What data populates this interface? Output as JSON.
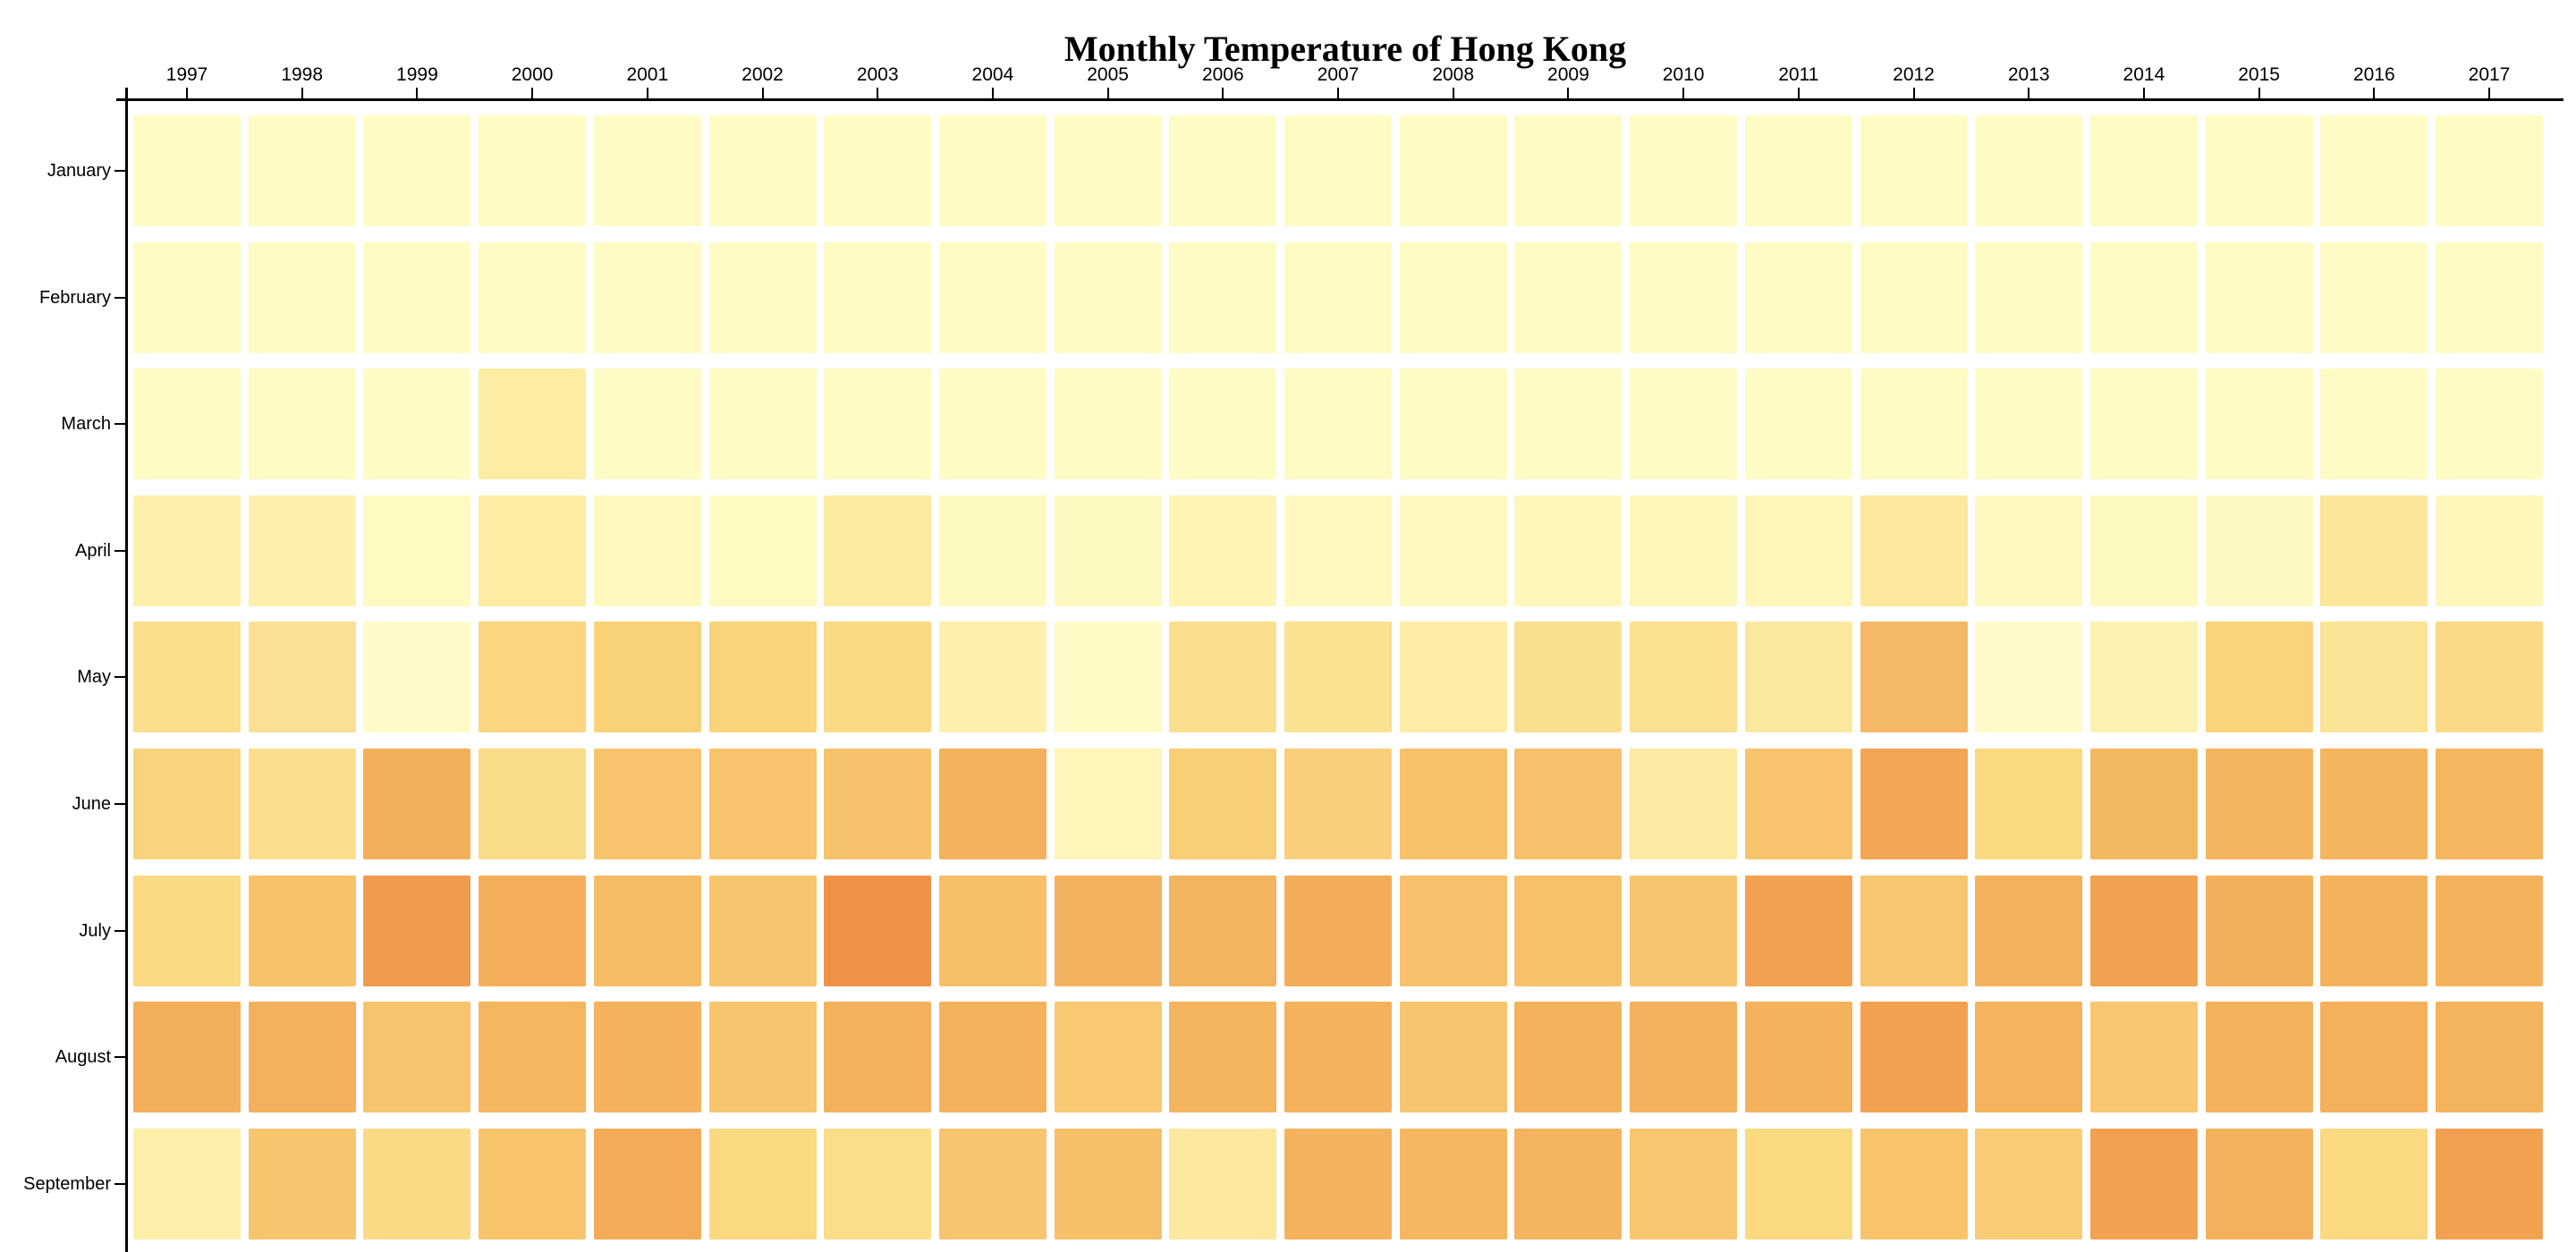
{
  "title": "Monthly Temperature of Hong Kong",
  "colors": {
    "background": "#ffffff",
    "axis_line": "#000000",
    "label_text": "#000000",
    "scale_min_observed": "#fefbc9",
    "scale_max_observed": "#ef9248"
  },
  "chart_data": {
    "type": "heatmap",
    "title": "Monthly Temperature of Hong Kong",
    "legend": "none",
    "x_axis": {
      "position": "top",
      "tick_labels": [
        "1997",
        "1998",
        "1999",
        "2000",
        "2001",
        "2002",
        "2003",
        "2004",
        "2005",
        "2006",
        "2007",
        "2008",
        "2009",
        "2010",
        "2011",
        "2012",
        "2013",
        "2014",
        "2015",
        "2016",
        "2017"
      ]
    },
    "y_axis": {
      "position": "left",
      "tick_labels": [
        "January",
        "February",
        "March",
        "April",
        "May",
        "June",
        "July",
        "August",
        "September"
      ]
    },
    "value_encoding": "temperature encoded as cell color from pale yellow (cool) to deep orange (hot); no colorbar shown",
    "rows": [
      {
        "label": "January",
        "colors": [
          "#fefbc5",
          "#fefbc5",
          "#fefbc5",
          "#fefbc5",
          "#fefbc5",
          "#fefbc5",
          "#fefbc5",
          "#fefbc5",
          "#fefbc5",
          "#fefbc5",
          "#fefbc5",
          "#fefbc5",
          "#fefbc5",
          "#fefbc5",
          "#fefbc5",
          "#fefbc5",
          "#fefbc5",
          "#fefbc5",
          "#fefbc5",
          "#fefbc5",
          "#fefbc5"
        ]
      },
      {
        "label": "February",
        "colors": [
          "#fefbc5",
          "#fefbc5",
          "#fefbc5",
          "#fefbc5",
          "#fefbc5",
          "#fefbc5",
          "#fefbc5",
          "#fefbc5",
          "#fefbc5",
          "#fefbc5",
          "#fefbc5",
          "#fefbc5",
          "#fefbc5",
          "#fefbc5",
          "#fefbc5",
          "#fefbc5",
          "#fefbc5",
          "#fefbc5",
          "#fefbc5",
          "#fefbc5",
          "#fefbc5"
        ]
      },
      {
        "label": "March",
        "colors": [
          "#fefbc5",
          "#fefbc5",
          "#fefbc5",
          "#fceda2",
          "#fefbc5",
          "#fefbc5",
          "#fefbc5",
          "#fefbc5",
          "#fefbc5",
          "#fefbc5",
          "#fefbc5",
          "#fefbc5",
          "#fefbc5",
          "#fefbc5",
          "#fefbc5",
          "#fefbc5",
          "#fefbc5",
          "#fefbc5",
          "#fefbc5",
          "#fefbc5",
          "#fefbc5"
        ]
      },
      {
        "label": "April",
        "colors": [
          "#fdf0ac",
          "#fdf0ac",
          "#fefac2",
          "#fdeca2",
          "#fef8be",
          "#fefac2",
          "#fdeba0",
          "#fef9c0",
          "#fef9c0",
          "#fef4b4",
          "#fef8be",
          "#fef8c0",
          "#fef6ba",
          "#fef7bc",
          "#fef5b8",
          "#fce89c",
          "#fef8be",
          "#fef9c0",
          "#fef9c2",
          "#fce69a",
          "#fef7bc"
        ]
      },
      {
        "label": "May",
        "colors": [
          "#fbdf8d",
          "#fbe093",
          "#fefbc9",
          "#f9d67f",
          "#f8d278",
          "#f8d47b",
          "#fad984",
          "#fdf0ac",
          "#fefac6",
          "#fbdf8f",
          "#fbe191",
          "#fdeda7",
          "#fbdf90",
          "#fbe092",
          "#fce9a0",
          "#f5b768",
          "#fefbc9",
          "#fdf2b3",
          "#f9d47d",
          "#fbe495",
          "#fad986"
        ]
      },
      {
        "label": "June",
        "colors": [
          "#f9d47e",
          "#fbdf8f",
          "#f4af5b",
          "#fadc88",
          "#f7c46d",
          "#f7c46d",
          "#f6c26c",
          "#f4b05c",
          "#fef6bb",
          "#f8ce76",
          "#f8d07c",
          "#f6c26a",
          "#f6c16a",
          "#fce9a2",
          "#f7c46d",
          "#f2a554",
          "#fad981",
          "#f5b862",
          "#f5b55e",
          "#f5b45e",
          "#f5b660"
        ]
      },
      {
        "label": "July",
        "colors": [
          "#fada82",
          "#f7c369",
          "#f09c4e",
          "#f4ae5a",
          "#f6bd66",
          "#f7c56e",
          "#ef9248",
          "#f6bf68",
          "#f4b25e",
          "#f4b35e",
          "#f3ac57",
          "#f6c16a",
          "#f6c269",
          "#f7c56e",
          "#f2a150",
          "#f7c66f",
          "#f4b05a",
          "#f1a251",
          "#f4af5a",
          "#f4b25d",
          "#f4b25d"
        ]
      },
      {
        "label": "August",
        "colors": [
          "#f4af5a",
          "#f4b05c",
          "#f7c46e",
          "#f5b660",
          "#f4b25e",
          "#f7c56e",
          "#f4b15c",
          "#f4b25c",
          "#f8c873",
          "#f5b45e",
          "#f4b25d",
          "#f7c46e",
          "#f4b25c",
          "#f4b15c",
          "#f4b25d",
          "#f2a150",
          "#f4b35c",
          "#f8c671",
          "#f4b25c",
          "#f4b05b",
          "#f4b35d"
        ]
      },
      {
        "label": "September",
        "colors": [
          "#fdefa9",
          "#f7c56e",
          "#fada84",
          "#f7c46c",
          "#f3ab57",
          "#fad981",
          "#fbdd8a",
          "#f7c56f",
          "#f6c068",
          "#fce89e",
          "#f4b25d",
          "#f5b660",
          "#f4b35e",
          "#f7c770",
          "#fad981",
          "#f7c46c",
          "#f8cc74",
          "#f1a150",
          "#f4b15b",
          "#fad981",
          "#f1a150"
        ]
      }
    ]
  }
}
